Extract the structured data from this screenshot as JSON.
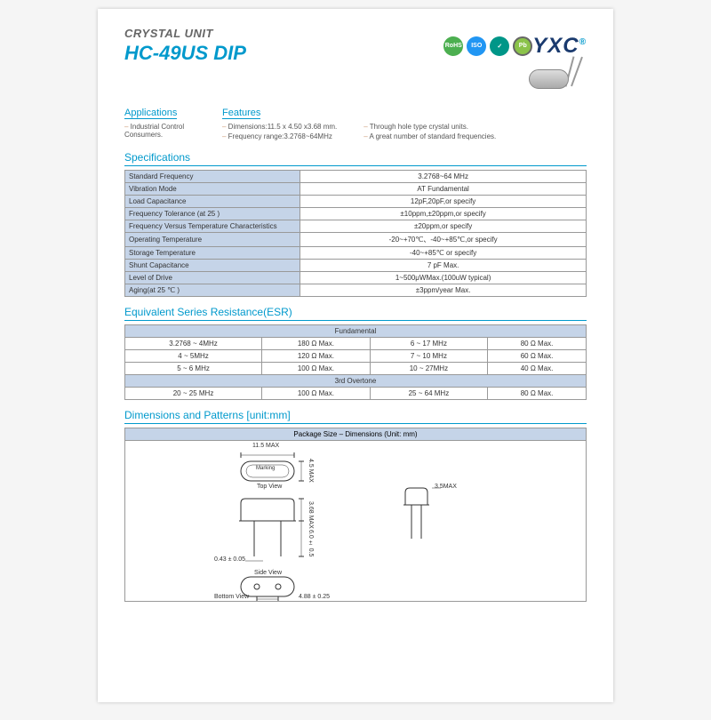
{
  "header": {
    "category": "CRYSTAL UNIT",
    "model": "HC-49US   DIP",
    "brand": "YXC"
  },
  "applications": {
    "title": "Applications",
    "items": [
      "Industrial Control Consumers."
    ]
  },
  "features": {
    "title": "Features",
    "col1": [
      "Dimensions:11.5 x 4.50 x3.68 mm.",
      "Frequency range:3.2768~64MHz"
    ],
    "col2": [
      "Through hole type crystal units.",
      "A great number of standard frequencies."
    ]
  },
  "specs": {
    "title": "Specifications",
    "rows": [
      [
        "Standard Frequency",
        "3.2768~64  MHz"
      ],
      [
        "Vibration Mode",
        "AT Fundamental"
      ],
      [
        "Load Capacitance",
        "12pF,20pF,or specify"
      ],
      [
        "Frequency Tolerance (at 25 )",
        "±10ppm,±20ppm,or specify"
      ],
      [
        "Frequency Versus Temperature Characteristics",
        "±20ppm,or specify"
      ],
      [
        "Operating Temperature",
        "-20~+70℃、-40~+85℃,or specify"
      ],
      [
        "Storage Temperature",
        "-40~+85℃ or specify"
      ],
      [
        "Shunt Capacitance",
        "7 pF Max."
      ],
      [
        "Level of Drive",
        "1~500μWMax.(100uW typical)"
      ],
      [
        "Aging(at 25 ℃ )",
        "±3ppm/year Max."
      ]
    ]
  },
  "esr": {
    "title": "Equivalent Series Resistance(ESR)",
    "fundamental_label": "Fundamental",
    "overtone_label": "3rd Overtone",
    "fundamental": [
      [
        "3.2768 ~ 4MHz",
        "180  Ω  Max.",
        "6 ~ 17 MHz",
        "80  Ω  Max."
      ],
      [
        "4 ~ 5MHz",
        "120  Ω  Max.",
        "7 ~ 10 MHz",
        "60  Ω  Max."
      ],
      [
        "5 ~ 6 MHz",
        "100  Ω  Max.",
        "10 ~ 27MHz",
        "40  Ω  Max."
      ]
    ],
    "overtone": [
      [
        "20 ~ 25 MHz",
        "100  Ω  Max.",
        "25 ~ 64 MHz",
        "80  Ω  Max."
      ]
    ]
  },
  "dimensions": {
    "title": "Dimensions and Patterns  [unit:mm]",
    "header": "Package Size – Dimensions (Unit: mm)",
    "labels": {
      "top_view": "Top View",
      "side_view": "Side View",
      "bottom_view": "Bottom View",
      "marking": "Marking",
      "w": "11.5 MAX",
      "h1": "4.5 MAX",
      "h2": "3.68 MAX",
      "h3": "6.0 ± 0.5",
      "pin_w": "0.43 ± 0.05",
      "pitch": "4.88 ± 0.25",
      "cap": "3.5MAX"
    }
  }
}
